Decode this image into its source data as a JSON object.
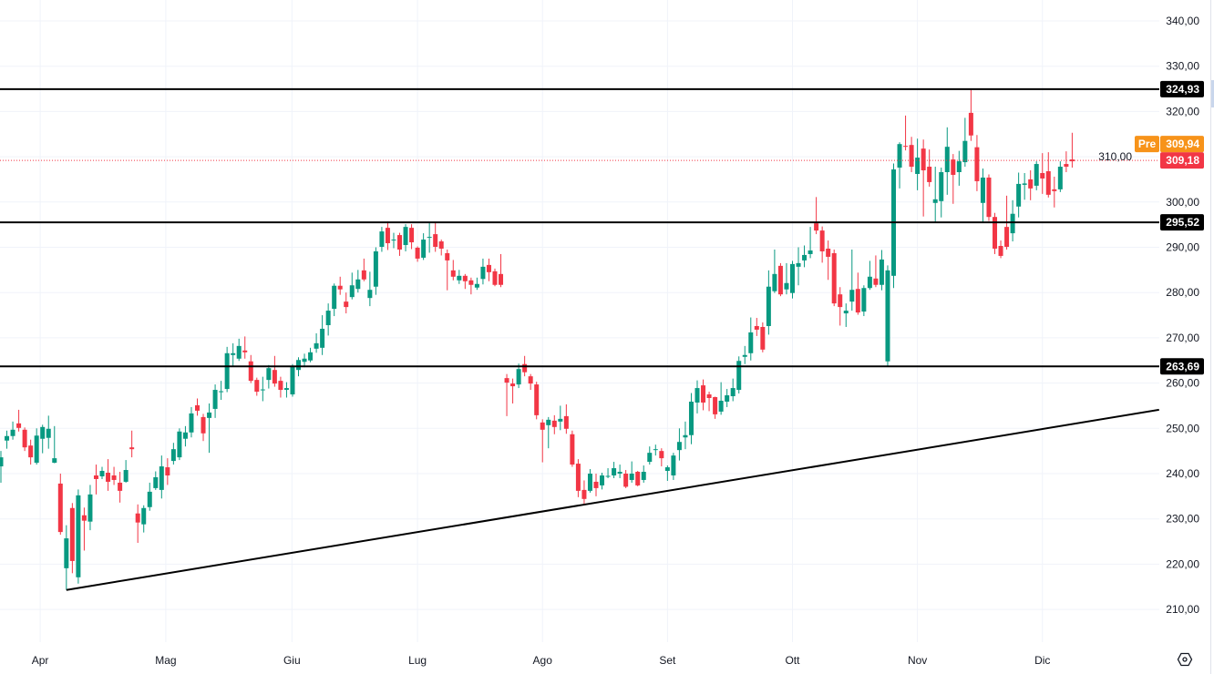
{
  "colors": {
    "up": "#089981",
    "down": "#f23645",
    "grid": "#f0f3fa",
    "level_line": "#000000",
    "pre": "#f7931a",
    "last": "#f23645"
  },
  "chart_data": {
    "type": "candlestick",
    "title": "",
    "ylim": [
      200,
      345
    ],
    "y_ticks": [
      210,
      220,
      230,
      240,
      250,
      260,
      270,
      280,
      290,
      300,
      310,
      320,
      330,
      340
    ],
    "y_tick_labels": [
      "210,00",
      "220,00",
      "230,00",
      "240,00",
      "250,00",
      "260,00",
      "270,00",
      "280,00",
      "290,00",
      "300,00",
      "310,00",
      "320,00",
      "330,00",
      "340,00"
    ],
    "x_ticks": [
      {
        "label": "Apr",
        "index": 6.6
      },
      {
        "label": "Mag",
        "index": 27.7
      },
      {
        "label": "Giu",
        "index": 48.9
      },
      {
        "label": "Lug",
        "index": 70
      },
      {
        "label": "Ago",
        "index": 91
      },
      {
        "label": "Set",
        "index": 112
      },
      {
        "label": "Ott",
        "index": 133
      },
      {
        "label": "Nov",
        "index": 154
      },
      {
        "label": "Dic",
        "index": 175
      }
    ],
    "grid": true,
    "horizontal_levels": [
      {
        "value": 324.93,
        "label": "324,93"
      },
      {
        "value": 295.52,
        "label": "295,52"
      },
      {
        "value": 263.69,
        "label": "263,69"
      }
    ],
    "trendline": {
      "start": {
        "index": 11,
        "price": 214.3
      },
      "end": {
        "index": 194.6,
        "price": 254.1
      }
    },
    "last_price": {
      "value": 309.18,
      "label": "309,18"
    },
    "premarket": {
      "tag": "Pre",
      "value": 309.94,
      "label": "309,94"
    },
    "candles_ohlc": [
      [
        241.6,
        245,
        238,
        243.6
      ],
      [
        247.3,
        249.5,
        245.5,
        248.3
      ],
      [
        248.3,
        251.5,
        247.5,
        249.7
      ],
      [
        251.1,
        254.1,
        249.3,
        250.1
      ],
      [
        249.7,
        250.2,
        245,
        245.8
      ],
      [
        246.2,
        247.5,
        242,
        243.6
      ],
      [
        242.4,
        250,
        242,
        248.4
      ],
      [
        247.7,
        250.8,
        244.5,
        250.3
      ],
      [
        247.9,
        252.8,
        245.5,
        249.9
      ],
      [
        242.4,
        250.5,
        242.3,
        243.4
      ],
      [
        237.8,
        240,
        226.5,
        227.1
      ],
      [
        219.1,
        228.6,
        214.3,
        225.7
      ],
      [
        232.4,
        233.5,
        218,
        220.7
      ],
      [
        217.1,
        236.5,
        215.7,
        235.2
      ],
      [
        230.8,
        232.5,
        223,
        229.6
      ],
      [
        229.4,
        237.5,
        227.5,
        235.4
      ],
      [
        239.6,
        242,
        235.4,
        238.8
      ],
      [
        239.4,
        241.5,
        238.8,
        240.6
      ],
      [
        240.2,
        243.2,
        236.2,
        238.2
      ],
      [
        239.6,
        241.5,
        237.5,
        238.6
      ],
      [
        238,
        240.4,
        233.6,
        236.2
      ],
      [
        238.2,
        243,
        238,
        240.8
      ],
      [
        245.8,
        249.5,
        243.6,
        245.4
      ],
      [
        231.2,
        233.2,
        224.7,
        229.2
      ],
      [
        228.8,
        233,
        227,
        232.4
      ],
      [
        232.6,
        238,
        231.8,
        236
      ],
      [
        236.8,
        240.5,
        236.4,
        239.2
      ],
      [
        236.4,
        244,
        234.5,
        241.6
      ],
      [
        241.4,
        243.4,
        237.5,
        239.6
      ],
      [
        242.8,
        246.8,
        242,
        245.4
      ],
      [
        243.6,
        250,
        243,
        249.3
      ],
      [
        247.7,
        250.5,
        246,
        249.1
      ],
      [
        249.1,
        254.7,
        248,
        253.3
      ],
      [
        255.1,
        256.6,
        252.8,
        253.9
      ],
      [
        252.5,
        253.2,
        247.2,
        248.9
      ],
      [
        252.3,
        255.5,
        244.6,
        253.5
      ],
      [
        254.3,
        259.7,
        252.3,
        258.5
      ],
      [
        258,
        260.5,
        256.3,
        258.2
      ],
      [
        258.7,
        268,
        258,
        266.6
      ],
      [
        266.2,
        268.8,
        263.8,
        266.6
      ],
      [
        265.4,
        269.8,
        264.9,
        268.2
      ],
      [
        267.2,
        270.3,
        265.4,
        266.8
      ],
      [
        264.8,
        266.2,
        260,
        260.5
      ],
      [
        260.7,
        261.2,
        257.2,
        258.1
      ],
      [
        258.4,
        261.4,
        256,
        258.6
      ],
      [
        260.7,
        264,
        258.8,
        263.3
      ],
      [
        262.9,
        266,
        259.2,
        259.9
      ],
      [
        260.5,
        261.4,
        256.8,
        258.5
      ],
      [
        258.5,
        260.2,
        256.8,
        258.9
      ],
      [
        257.5,
        264.2,
        257,
        263.7
      ],
      [
        262.9,
        265.7,
        261.5,
        265.1
      ],
      [
        264.7,
        266.5,
        263.5,
        265.4
      ],
      [
        265,
        267.8,
        264.6,
        266.8
      ],
      [
        267.6,
        271,
        266.7,
        268.8
      ],
      [
        267.8,
        275,
        266.2,
        272
      ],
      [
        272.8,
        277.6,
        270.5,
        276
      ],
      [
        276.4,
        282,
        274.8,
        281.5
      ],
      [
        281.5,
        283.5,
        279.5,
        280.7
      ],
      [
        278,
        280,
        275.4,
        276.8
      ],
      [
        279,
        284.4,
        278.5,
        281.6
      ],
      [
        280.8,
        285,
        280,
        282.9
      ],
      [
        284.9,
        287.5,
        282.5,
        282.9
      ],
      [
        278.8,
        284.6,
        277,
        280.6
      ],
      [
        281.3,
        290,
        279.5,
        289.1
      ],
      [
        290.1,
        294.5,
        289,
        293.5
      ],
      [
        294.3,
        295.7,
        289.4,
        290.9
      ],
      [
        291.7,
        293.2,
        289.8,
        291.7
      ],
      [
        292.7,
        293.2,
        288.1,
        289.5
      ],
      [
        290.5,
        295.1,
        289.1,
        294.5
      ],
      [
        294.3,
        295.1,
        289.6,
        291.1
      ],
      [
        289.9,
        290.2,
        286.8,
        287.5
      ],
      [
        287.7,
        293.1,
        287.2,
        291.7
      ],
      [
        292.3,
        295.5,
        288.8,
        292.3
      ],
      [
        292.9,
        295.5,
        289,
        290.1
      ],
      [
        291.3,
        291.7,
        288.2,
        289.7
      ],
      [
        288.7,
        289.5,
        280.5,
        287.1
      ],
      [
        284.9,
        287.2,
        282.7,
        283.5
      ],
      [
        282.7,
        285,
        281.9,
        283.7
      ],
      [
        283.7,
        284.1,
        280.8,
        282.5
      ],
      [
        282.7,
        283.3,
        279.6,
        281.7
      ],
      [
        281.1,
        283.3,
        280.6,
        281.9
      ],
      [
        283,
        287.5,
        281.8,
        285.7
      ],
      [
        286.1,
        287.5,
        282.5,
        284.5
      ],
      [
        284.7,
        285.3,
        281.4,
        281.7
      ],
      [
        284.1,
        288.5,
        281.2,
        281.7
      ],
      [
        261.1,
        262,
        252.7,
        260.1
      ],
      [
        259.9,
        261,
        255.5,
        259.3
      ],
      [
        259.7,
        264.3,
        258.9,
        263.1
      ],
      [
        264.2,
        266,
        261.5,
        262.4
      ],
      [
        261.5,
        262,
        258.5,
        259.9
      ],
      [
        259.7,
        260.3,
        252,
        252.9
      ],
      [
        251.3,
        252,
        242.5,
        249.7
      ],
      [
        250.7,
        252.5,
        245.6,
        251.9
      ],
      [
        251.7,
        252.9,
        248.7,
        250.3
      ],
      [
        251.5,
        255,
        249.6,
        252.1
      ],
      [
        252.7,
        255.3,
        248.8,
        249.9
      ],
      [
        248.7,
        249.5,
        241.5,
        242
      ],
      [
        242.2,
        243.2,
        234.8,
        236.2
      ],
      [
        236.4,
        238.5,
        233.2,
        234.4
      ],
      [
        236.2,
        241,
        235.8,
        240
      ],
      [
        238.2,
        240,
        235,
        236.8
      ],
      [
        237.4,
        240.2,
        236.5,
        239.6
      ],
      [
        239.3,
        241.2,
        239,
        239.5
      ],
      [
        239.6,
        242.6,
        239,
        241.2
      ],
      [
        240,
        242,
        239,
        240.4
      ],
      [
        240,
        240.8,
        236.8,
        237.1
      ],
      [
        238.6,
        242.7,
        238,
        240
      ],
      [
        240.4,
        240.6,
        237.2,
        237.4
      ],
      [
        238.6,
        241.8,
        238,
        240.4
      ],
      [
        242.6,
        246,
        242,
        244.6
      ],
      [
        245.2,
        246.4,
        244,
        245.4
      ],
      [
        245,
        245.6,
        241.6,
        243.4
      ],
      [
        240.6,
        241.8,
        238.4,
        241.4
      ],
      [
        239.6,
        244.6,
        238.6,
        244
      ],
      [
        245.2,
        250,
        242.9,
        247
      ],
      [
        248,
        251.5,
        245.4,
        248.5
      ],
      [
        248.5,
        257.8,
        246.5,
        255.9
      ],
      [
        255.7,
        260.6,
        253.3,
        258.9
      ],
      [
        259.5,
        260.8,
        254,
        255.7
      ],
      [
        257.5,
        258.1,
        253.8,
        256.7
      ],
      [
        256.9,
        257,
        252.1,
        253.1
      ],
      [
        253.7,
        260.2,
        253,
        256.1
      ],
      [
        255.9,
        258.7,
        254.7,
        257.3
      ],
      [
        257.1,
        261,
        256,
        258.9
      ],
      [
        258.5,
        265.9,
        257.7,
        264.9
      ],
      [
        265.8,
        268.2,
        264.2,
        266.2
      ],
      [
        266.6,
        274.5,
        265,
        271.2
      ],
      [
        272.6,
        274.4,
        270.4,
        271.8
      ],
      [
        272.4,
        273.4,
        266.8,
        267.4
      ],
      [
        272.6,
        284.9,
        270.7,
        281.3
      ],
      [
        280.3,
        289.5,
        279.9,
        284.1
      ],
      [
        285.9,
        286.5,
        279.2,
        279.6
      ],
      [
        280.7,
        286.5,
        279.6,
        282.1
      ],
      [
        279.9,
        287,
        278.7,
        286.3
      ],
      [
        285.7,
        290,
        281.6,
        286.5
      ],
      [
        287.1,
        290.4,
        285.6,
        288.3
      ],
      [
        288.5,
        294.5,
        287.6,
        289.3
      ],
      [
        295.3,
        301.1,
        292.9,
        293.7
      ],
      [
        293.7,
        294.6,
        286.6,
        289.1
      ],
      [
        289.7,
        291.5,
        282.8,
        287.9
      ],
      [
        288.7,
        289.5,
        277,
        277.6
      ],
      [
        279.6,
        281.2,
        272.7,
        276.8
      ],
      [
        275.4,
        277.6,
        272.4,
        276
      ],
      [
        278,
        289.5,
        276,
        280.6
      ],
      [
        280.8,
        284.4,
        275.1,
        275.6
      ],
      [
        275.8,
        281.6,
        274.8,
        281
      ],
      [
        281,
        287,
        280.6,
        283.5
      ],
      [
        283.1,
        288.2,
        281.2,
        281.7
      ],
      [
        281.7,
        289.4,
        280.5,
        287.3
      ],
      [
        264.8,
        286,
        263.7,
        284.9
      ],
      [
        283.7,
        308.5,
        281,
        307.2
      ],
      [
        307.6,
        313.2,
        303,
        312.8
      ],
      [
        312.4,
        319.1,
        311.4,
        312.2
      ],
      [
        312.6,
        314.4,
        306.6,
        307.8
      ],
      [
        306.2,
        314,
        302.6,
        309.8
      ],
      [
        311.8,
        313.8,
        296.8,
        307
      ],
      [
        307.8,
        311.6,
        303.4,
        304.4
      ],
      [
        299.8,
        307.8,
        295.6,
        300.6
      ],
      [
        300.2,
        307.6,
        296.6,
        306.6
      ],
      [
        306.6,
        316.5,
        301.6,
        312.2
      ],
      [
        309.4,
        310.6,
        299.6,
        306
      ],
      [
        306.6,
        311.3,
        303.6,
        309
      ],
      [
        308.8,
        318.6,
        307.8,
        313.5
      ],
      [
        319.7,
        324.9,
        313.5,
        314.7
      ],
      [
        312.1,
        314.8,
        302.4,
        304.6
      ],
      [
        299.8,
        307.4,
        295.6,
        305.4
      ],
      [
        305.4,
        306.1,
        295.8,
        296.7
      ],
      [
        296.7,
        297.6,
        288.5,
        289.7
      ],
      [
        290.3,
        291.5,
        287.6,
        288.1
      ],
      [
        294.5,
        301.4,
        289.5,
        290.1
      ],
      [
        293.1,
        300.4,
        291.3,
        297.4
      ],
      [
        299,
        306.5,
        296.6,
        304
      ],
      [
        303.8,
        306.4,
        300.5,
        304.1
      ],
      [
        305,
        307,
        300.4,
        303
      ],
      [
        303.6,
        309,
        302.6,
        308.4
      ],
      [
        306.4,
        310.8,
        301.8,
        305.2
      ],
      [
        306.8,
        311,
        301,
        301.6
      ],
      [
        302.8,
        305.6,
        298.8,
        302.4
      ],
      [
        302.8,
        309,
        302.2,
        307.8
      ],
      [
        308.4,
        311.2,
        306.6,
        307.8
      ],
      [
        309.4,
        315.3,
        307.6,
        309
      ]
    ]
  }
}
